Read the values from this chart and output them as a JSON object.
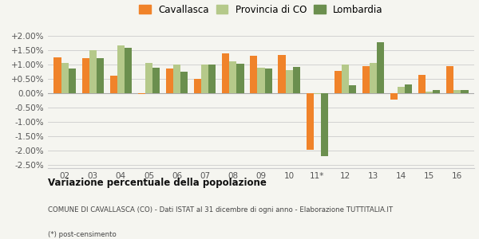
{
  "categories": [
    "02",
    "03",
    "04",
    "05",
    "06",
    "07",
    "08",
    "09",
    "10",
    "11*",
    "12",
    "13",
    "14",
    "15",
    "16"
  ],
  "cavallasca": [
    1.25,
    1.22,
    0.6,
    -0.02,
    0.85,
    0.5,
    1.38,
    1.32,
    1.33,
    -1.97,
    0.78,
    0.95,
    -0.22,
    0.65,
    0.95
  ],
  "provincia_co": [
    1.05,
    1.5,
    1.68,
    1.05,
    1.0,
    1.0,
    1.1,
    0.9,
    0.82,
    -0.02,
    1.0,
    1.05,
    0.22,
    0.05,
    0.1
  ],
  "lombardia": [
    0.85,
    1.22,
    1.58,
    0.9,
    0.75,
    1.0,
    1.02,
    0.87,
    0.92,
    -2.18,
    0.28,
    1.78,
    0.32,
    0.1,
    0.12
  ],
  "color_cavallasca": "#f0832a",
  "color_provincia": "#b5c98a",
  "color_lombardia": "#6b8f4e",
  "background_color": "#f5f5f0",
  "ylim": [
    -2.6,
    2.25
  ],
  "yticks": [
    -2.5,
    -2.0,
    -1.5,
    -1.0,
    -0.5,
    0.0,
    0.5,
    1.0,
    1.5,
    2.0
  ],
  "title": "Variazione percentuale della popolazione",
  "subtitle": "COMUNE DI CAVALLASCA (CO) - Dati ISTAT al 31 dicembre di ogni anno - Elaborazione TUTTITALIA.IT",
  "footnote": "(*) post-censimento",
  "legend_labels": [
    "Cavallasca",
    "Provincia di CO",
    "Lombardia"
  ]
}
